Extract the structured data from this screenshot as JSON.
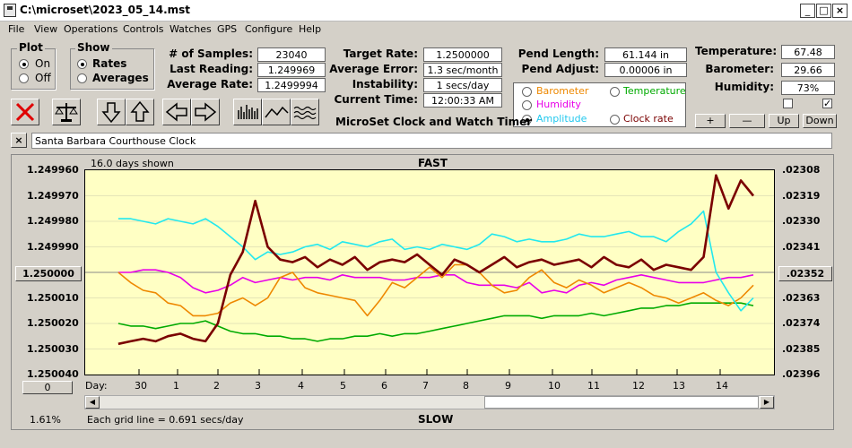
{
  "window": {
    "title": "C:\\microset\\2023_05_14.mst"
  },
  "menu": [
    "File",
    "View",
    "Operations",
    "Controls",
    "Watches",
    "GPS",
    "Configure",
    "Help"
  ],
  "plot_group": {
    "title": "Plot",
    "on": "On",
    "off": "Off"
  },
  "show_group": {
    "title": "Show",
    "rates": "Rates",
    "averages": "Averages"
  },
  "stats": {
    "samples_label": "# of Samples:",
    "samples": "23040",
    "last_label": "Last Reading:",
    "last": "1.249969",
    "avg_label": "Average Rate:",
    "avg": "1.2499994"
  },
  "target": {
    "rate_label": "Target Rate:",
    "rate": "1.2500000",
    "err_label": "Average Error:",
    "err": "1.3 sec/month",
    "inst_label": "Instability:",
    "inst": "1 secs/day",
    "time_label": "Current Time:",
    "time": "12:00:33 AM"
  },
  "pend": {
    "len_label": "Pend Length:",
    "len": "61.144 in",
    "adj_label": "Pend Adjust:",
    "adj": "0.00006 in"
  },
  "env": {
    "temp_label": "Temperature:",
    "temp": "67.48",
    "baro_label": "Barometer:",
    "baro": "29.66",
    "hum_label": "Humidity:",
    "hum": "73%"
  },
  "series_opts": {
    "barometer": "Barometer",
    "temperature": "Temperature",
    "humidity": "Humidity",
    "amplitude": "Amplitude",
    "clock_rate": "Clock rate"
  },
  "adjust_buttons": {
    "plus": "+",
    "minus": "—",
    "up": "Up",
    "down": "Down"
  },
  "app_title": "MicroSet Clock and Watch Timer",
  "clock_name": "Santa Barbara Courthouse Clock",
  "chart": {
    "days_shown": "16.0 days shown",
    "top": "FAST",
    "bottom": "SLOW",
    "grid_note": "Each grid line = 0.691 secs/day",
    "percent": "1.61%",
    "day_label": "Day:",
    "center_left": "1.250000",
    "center_right": ".02352",
    "zero_btn": "0"
  },
  "colors": {
    "barometer": "#ee8800",
    "temperature": "#00aa00",
    "humidity": "#e800e8",
    "amplitude": "#22e8ee",
    "clock_rate": "#7a0000"
  },
  "chart_data": {
    "type": "line",
    "y_left_ticks": [
      "1.249960",
      "1.249970",
      "1.249980",
      "1.249990",
      "1.250000",
      "1.250010",
      "1.250020",
      "1.250030",
      "1.250040"
    ],
    "y_right_ticks": [
      ".02308",
      ".02319",
      ".02330",
      ".02341",
      ".02352",
      ".02363",
      ".02374",
      ".02385",
      ".02396"
    ],
    "x_ticks": [
      "30",
      "1",
      "2",
      "3",
      "4",
      "5",
      "6",
      "7",
      "8",
      "9",
      "10",
      "11",
      "12",
      "13",
      "14"
    ],
    "x": [
      29.5,
      29.8,
      30.1,
      30.4,
      30.7,
      31.0,
      1.3,
      1.6,
      1.9,
      2.2,
      2.5,
      2.8,
      3.1,
      3.4,
      3.7,
      4.0,
      4.3,
      4.6,
      4.9,
      5.2,
      5.5,
      5.8,
      6.1,
      6.4,
      6.7,
      7.0,
      7.3,
      7.6,
      7.9,
      8.2,
      8.5,
      8.8,
      9.1,
      9.4,
      9.7,
      10.0,
      10.3,
      10.6,
      10.9,
      11.2,
      11.5,
      11.8,
      12.1,
      12.4,
      12.7,
      13.0,
      13.3,
      13.6,
      13.9,
      14.2,
      14.5,
      14.8
    ],
    "series": [
      {
        "name": "Clock rate",
        "values": [
          1.250028,
          1.250027,
          1.250026,
          1.250027,
          1.250025,
          1.250024,
          1.250026,
          1.250027,
          1.25002,
          1.250001,
          1.249992,
          1.249972,
          1.24999,
          1.249995,
          1.249996,
          1.249994,
          1.249998,
          1.249995,
          1.249997,
          1.249994,
          1.249999,
          1.249996,
          1.249995,
          1.249996,
          1.249993,
          1.249997,
          1.250001,
          1.249995,
          1.249997,
          1.25,
          1.249997,
          1.249994,
          1.249998,
          1.249996,
          1.249995,
          1.249997,
          1.249996,
          1.249995,
          1.249998,
          1.249994,
          1.249997,
          1.249998,
          1.249995,
          1.249999,
          1.249997,
          1.249998,
          1.249999,
          1.249994,
          1.249962,
          1.249975,
          1.249964,
          1.24997
        ]
      },
      {
        "name": "Amplitude",
        "values": [
          1.249979,
          1.249979,
          1.24998,
          1.249981,
          1.249979,
          1.24998,
          1.249981,
          1.249979,
          1.249982,
          1.249986,
          1.24999,
          1.249995,
          1.249992,
          1.249993,
          1.249992,
          1.24999,
          1.249989,
          1.249991,
          1.249988,
          1.249989,
          1.24999,
          1.249988,
          1.249987,
          1.249991,
          1.24999,
          1.249991,
          1.249989,
          1.24999,
          1.249991,
          1.249989,
          1.249985,
          1.249986,
          1.249988,
          1.249987,
          1.249988,
          1.249988,
          1.249987,
          1.249985,
          1.249986,
          1.249986,
          1.249985,
          1.249984,
          1.249986,
          1.249986,
          1.249988,
          1.249984,
          1.249981,
          1.249976,
          1.25,
          1.250008,
          1.250015,
          1.25001
        ]
      },
      {
        "name": "Barometer",
        "values": [
          1.25,
          1.250004,
          1.250007,
          1.250008,
          1.250012,
          1.250013,
          1.250017,
          1.250017,
          1.250016,
          1.250012,
          1.25001,
          1.250013,
          1.25001,
          1.250002,
          1.25,
          1.250006,
          1.250008,
          1.250009,
          1.25001,
          1.250011,
          1.250017,
          1.250011,
          1.250004,
          1.250006,
          1.250002,
          1.249998,
          1.250002,
          1.249997,
          1.249997,
          1.25,
          1.250005,
          1.250008,
          1.250007,
          1.250002,
          1.249999,
          1.250004,
          1.250006,
          1.250003,
          1.250005,
          1.250008,
          1.250006,
          1.250004,
          1.250006,
          1.250009,
          1.25001,
          1.250012,
          1.25001,
          1.250008,
          1.250011,
          1.250013,
          1.25001,
          1.250005
        ]
      },
      {
        "name": "Humidity",
        "values": [
          1.25,
          1.25,
          1.249999,
          1.249999,
          1.25,
          1.250002,
          1.250006,
          1.250008,
          1.250007,
          1.250005,
          1.250002,
          1.250004,
          1.250003,
          1.250002,
          1.250003,
          1.250002,
          1.250002,
          1.250003,
          1.250001,
          1.250002,
          1.250002,
          1.250002,
          1.250003,
          1.250003,
          1.250002,
          1.250002,
          1.250001,
          1.250001,
          1.250004,
          1.250005,
          1.250005,
          1.250005,
          1.250006,
          1.250004,
          1.250008,
          1.250007,
          1.250008,
          1.250005,
          1.250004,
          1.250005,
          1.250003,
          1.250002,
          1.250001,
          1.250002,
          1.250003,
          1.250004,
          1.250004,
          1.250004,
          1.250003,
          1.250002,
          1.250002,
          1.250001
        ]
      },
      {
        "name": "Temperature",
        "values": [
          1.25002,
          1.250021,
          1.250021,
          1.250022,
          1.250021,
          1.25002,
          1.25002,
          1.250019,
          1.250021,
          1.250023,
          1.250024,
          1.250024,
          1.250025,
          1.250025,
          1.250026,
          1.250026,
          1.250027,
          1.250026,
          1.250026,
          1.250025,
          1.250025,
          1.250024,
          1.250025,
          1.250024,
          1.250024,
          1.250023,
          1.250022,
          1.250021,
          1.25002,
          1.250019,
          1.250018,
          1.250017,
          1.250017,
          1.250017,
          1.250018,
          1.250017,
          1.250017,
          1.250017,
          1.250016,
          1.250017,
          1.250016,
          1.250015,
          1.250014,
          1.250014,
          1.250013,
          1.250013,
          1.250012,
          1.250012,
          1.250012,
          1.250012,
          1.250012,
          1.250013
        ]
      }
    ]
  }
}
